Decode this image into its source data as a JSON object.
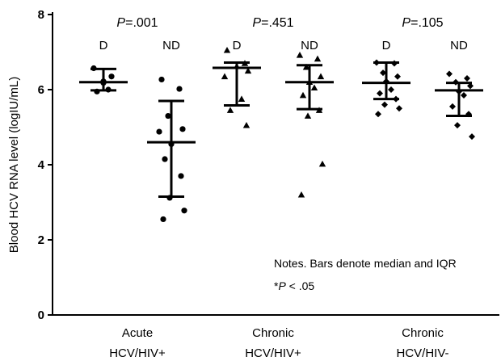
{
  "chart_data": {
    "type": "scatter",
    "ylabel": "Blood HCV RNA level (logIU/mL)",
    "ylim": [
      0,
      8
    ],
    "yticks": [
      0,
      2,
      4,
      6,
      8
    ],
    "grid": false,
    "groups": [
      {
        "label_line1": "Acute",
        "label_line2": "HCV/HIV+",
        "p_prefix": "P",
        "p_value": "=.001",
        "series": [
          {
            "name": "D",
            "marker": "circle",
            "median": 6.2,
            "q1": 5.98,
            "q3": 6.55,
            "values": [
              6.57,
              6.35,
              6.22,
              6.2,
              6.18,
              6.0,
              5.95
            ]
          },
          {
            "name": "ND",
            "marker": "circle",
            "median": 4.6,
            "q1": 3.15,
            "q3": 5.7,
            "values": [
              6.27,
              6.02,
              5.3,
              4.95,
              4.88,
              4.55,
              4.15,
              3.7,
              3.12,
              2.78,
              2.55
            ]
          }
        ]
      },
      {
        "label_line1": "Chronic",
        "label_line2": "HCV/HIV+",
        "p_prefix": "P",
        "p_value": "=.451",
        "series": [
          {
            "name": "D",
            "marker": "triangle",
            "median": 6.58,
            "q1": 5.58,
            "q3": 6.72,
            "values": [
              7.05,
              6.7,
              6.62,
              6.5,
              6.35,
              5.75,
              5.45,
              5.05
            ]
          },
          {
            "name": "ND",
            "marker": "triangle",
            "median": 6.2,
            "q1": 5.48,
            "q3": 6.65,
            "values": [
              6.92,
              6.82,
              6.6,
              6.35,
              6.2,
              6.05,
              5.85,
              5.45,
              5.3,
              4.02,
              3.2
            ]
          }
        ]
      },
      {
        "label_line1": "Chronic",
        "label_line2": "HCV/HIV-",
        "p_prefix": "P",
        "p_value": "=.105",
        "series": [
          {
            "name": "D",
            "marker": "diamond",
            "median": 6.18,
            "q1": 5.75,
            "q3": 6.72,
            "values": [
              6.72,
              6.7,
              6.45,
              6.35,
              6.22,
              6.0,
              5.9,
              5.75,
              5.6,
              5.5,
              5.35
            ]
          },
          {
            "name": "ND",
            "marker": "diamond",
            "median": 5.98,
            "q1": 5.3,
            "q3": 6.18,
            "values": [
              6.42,
              6.3,
              6.2,
              6.1,
              5.95,
              5.85,
              5.55,
              5.35,
              5.05,
              4.75
            ]
          }
        ]
      }
    ],
    "notes": {
      "line1": "Notes. Bars denote median and IQR",
      "line2_prefix": "*",
      "line2_italic": "P",
      "line2_rest": " < .05"
    }
  }
}
